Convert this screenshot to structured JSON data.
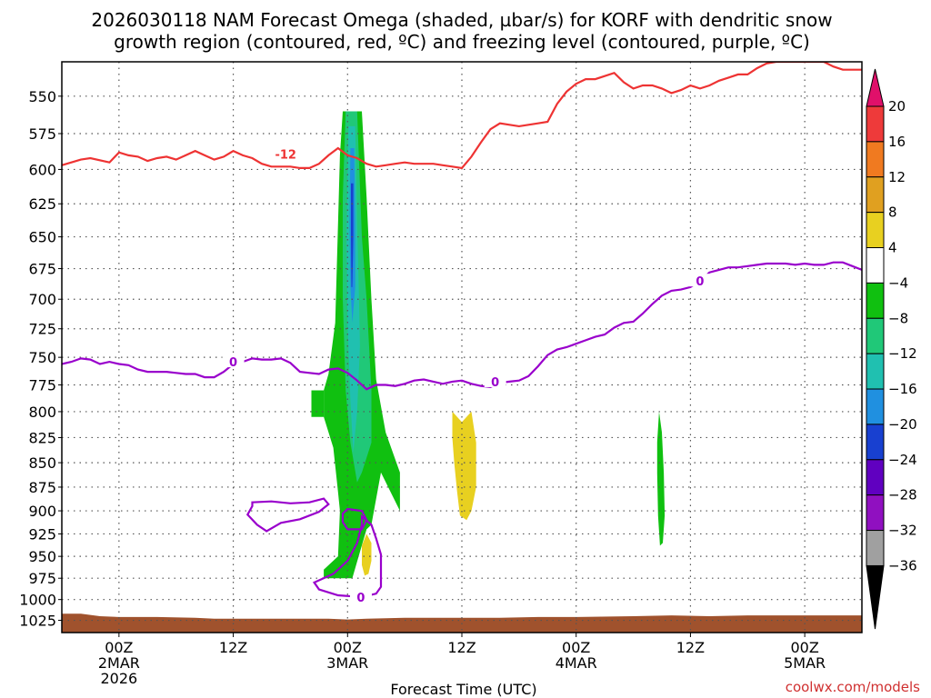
{
  "title_line1": "2026030118 NAM Forecast Omega (shaded, µbar/s) for KORF with dendritic snow",
  "title_line2": "growth region (contoured, red, ºC) and freezing level (contoured, purple, ºC)",
  "credit": "coolwx.com/models",
  "colors": {
    "dendritic": "#ee3333",
    "freezing": "#9900cc",
    "terrain": "#a0522d",
    "grid": "#555555"
  },
  "chart_data": {
    "type": "heatmap",
    "xlabel": "Forecast Time (UTC)",
    "ylabel": "",
    "x_range_hours": [
      -6,
      78
    ],
    "ylim": [
      1040,
      528
    ],
    "y_scale": "reversed pressure (hPa)",
    "grid": true,
    "y_ticks": [
      550,
      575,
      600,
      625,
      650,
      675,
      700,
      725,
      750,
      775,
      800,
      825,
      850,
      875,
      900,
      925,
      950,
      975,
      1000,
      1025
    ],
    "x_ticks": [
      {
        "h": 0,
        "lines": [
          "00Z",
          "2MAR",
          "2026"
        ]
      },
      {
        "h": 12,
        "lines": [
          "12Z"
        ]
      },
      {
        "h": 24,
        "lines": [
          "00Z",
          "3MAR"
        ]
      },
      {
        "h": 36,
        "lines": [
          "12Z"
        ]
      },
      {
        "h": 48,
        "lines": [
          "00Z",
          "4MAR"
        ]
      },
      {
        "h": 60,
        "lines": [
          "12Z"
        ]
      },
      {
        "h": 72,
        "lines": [
          "00Z",
          "5MAR"
        ]
      }
    ],
    "colorbar": {
      "labels": [
        "20",
        "16",
        "12",
        "8",
        "4",
        "−4",
        "−8",
        "−12",
        "−16",
        "−20",
        "−24",
        "−28",
        "−32",
        "−36"
      ],
      "colors": [
        "#ee3a3a",
        "#f07a20",
        "#e0a020",
        "#e8d020",
        "#ffffff",
        "#10c010",
        "#20c878",
        "#20c0b0",
        "#2090e0",
        "#1840d0",
        "#6000c0",
        "#9010c0",
        "#a0a0a0"
      ],
      "top_arrow_color": "#e0106a",
      "bottom_arrow_color": "#000000"
    },
    "dendritic_label": "-12",
    "freezing_label": "0",
    "dendritic_minus12_line": [
      [
        -6,
        597
      ],
      [
        -4,
        593
      ],
      [
        -3,
        592
      ],
      [
        -1,
        595
      ],
      [
        0,
        588
      ],
      [
        1,
        590
      ],
      [
        2,
        591
      ],
      [
        3,
        594
      ],
      [
        4,
        592
      ],
      [
        5,
        591
      ],
      [
        6,
        593
      ],
      [
        7,
        590
      ],
      [
        8,
        587
      ],
      [
        9,
        590
      ],
      [
        10,
        593
      ],
      [
        11,
        591
      ],
      [
        12,
        587
      ],
      [
        13,
        590
      ],
      [
        14,
        592
      ],
      [
        15,
        596
      ],
      [
        16,
        598
      ],
      [
        17,
        598
      ],
      [
        18,
        598
      ],
      [
        19,
        599
      ],
      [
        20,
        599
      ],
      [
        21,
        596
      ],
      [
        22,
        590
      ],
      [
        23,
        585
      ],
      [
        24,
        590
      ],
      [
        25,
        592
      ],
      [
        26,
        596
      ],
      [
        27,
        598
      ],
      [
        28,
        597
      ],
      [
        29,
        596
      ],
      [
        30,
        595
      ],
      [
        31,
        596
      ],
      [
        32,
        596
      ],
      [
        33,
        596
      ],
      [
        34,
        597
      ],
      [
        35,
        598
      ],
      [
        36,
        599
      ],
      [
        37,
        591
      ],
      [
        38,
        581
      ],
      [
        39,
        572
      ],
      [
        40,
        568
      ],
      [
        41,
        569
      ],
      [
        42,
        570
      ],
      [
        43,
        569
      ],
      [
        44,
        568
      ],
      [
        45,
        567
      ],
      [
        46,
        555
      ],
      [
        47,
        547
      ],
      [
        48,
        542
      ],
      [
        49,
        539
      ],
      [
        50,
        539
      ],
      [
        51,
        537
      ],
      [
        52,
        535
      ],
      [
        53,
        541
      ],
      [
        54,
        545
      ],
      [
        55,
        543
      ],
      [
        56,
        543
      ],
      [
        57,
        545
      ],
      [
        58,
        548
      ],
      [
        59,
        546
      ],
      [
        60,
        543
      ],
      [
        61,
        545
      ],
      [
        62,
        543
      ],
      [
        63,
        540
      ],
      [
        64,
        538
      ],
      [
        65,
        536
      ],
      [
        66,
        536
      ],
      [
        67,
        532
      ],
      [
        68,
        529
      ],
      [
        69,
        528
      ],
      [
        70,
        528
      ],
      [
        71,
        528
      ],
      [
        72,
        528
      ],
      [
        73,
        528
      ],
      [
        74,
        528
      ],
      [
        75,
        531
      ],
      [
        76,
        533
      ],
      [
        77,
        533
      ],
      [
        78,
        533
      ]
    ],
    "freezing_0_line": [
      [
        -6,
        756
      ],
      [
        -5,
        754
      ],
      [
        -4,
        751
      ],
      [
        -3,
        752
      ],
      [
        -2,
        756
      ],
      [
        -1,
        754
      ],
      [
        0,
        756
      ],
      [
        1,
        757
      ],
      [
        2,
        761
      ],
      [
        3,
        763
      ],
      [
        4,
        763
      ],
      [
        5,
        763
      ],
      [
        6,
        764
      ],
      [
        7,
        765
      ],
      [
        8,
        765
      ],
      [
        9,
        768
      ],
      [
        10,
        768
      ],
      [
        11,
        763
      ],
      [
        12,
        756
      ],
      [
        13,
        754
      ],
      [
        14,
        751
      ],
      [
        15,
        752
      ],
      [
        16,
        752
      ],
      [
        17,
        751
      ],
      [
        18,
        755
      ],
      [
        19,
        763
      ],
      [
        20,
        764
      ],
      [
        21,
        765
      ],
      [
        22,
        761
      ],
      [
        23,
        760
      ],
      [
        24,
        764
      ],
      [
        25,
        771
      ],
      [
        26,
        779
      ],
      [
        27,
        775
      ],
      [
        28,
        775
      ],
      [
        29,
        776
      ],
      [
        30,
        774
      ],
      [
        31,
        771
      ],
      [
        32,
        770
      ],
      [
        33,
        772
      ],
      [
        34,
        774
      ],
      [
        35,
        772
      ],
      [
        36,
        771
      ],
      [
        37,
        774
      ],
      [
        38,
        776
      ],
      [
        39,
        777
      ],
      [
        40,
        773
      ],
      [
        41,
        772
      ],
      [
        42,
        771
      ],
      [
        43,
        767
      ],
      [
        44,
        758
      ],
      [
        45,
        748
      ],
      [
        46,
        743
      ],
      [
        47,
        741
      ],
      [
        48,
        738
      ],
      [
        49,
        735
      ],
      [
        50,
        732
      ],
      [
        51,
        730
      ],
      [
        52,
        724
      ],
      [
        53,
        720
      ],
      [
        54,
        719
      ],
      [
        55,
        712
      ],
      [
        56,
        704
      ],
      [
        57,
        697
      ],
      [
        58,
        693
      ],
      [
        59,
        692
      ],
      [
        60,
        690
      ],
      [
        61,
        685
      ],
      [
        62,
        678
      ],
      [
        63,
        676
      ],
      [
        64,
        674
      ],
      [
        65,
        674
      ],
      [
        66,
        673
      ],
      [
        67,
        672
      ],
      [
        68,
        671
      ],
      [
        69,
        671
      ],
      [
        70,
        671
      ],
      [
        71,
        672
      ],
      [
        72,
        671
      ],
      [
        73,
        672
      ],
      [
        74,
        672
      ],
      [
        75,
        670
      ],
      [
        76,
        670
      ],
      [
        77,
        673
      ],
      [
        78,
        676
      ]
    ],
    "freezing_0_lowlevel_loop": [
      [
        14,
        891
      ],
      [
        16,
        890
      ],
      [
        18,
        892
      ],
      [
        20,
        891
      ],
      [
        21.5,
        887
      ],
      [
        22,
        893
      ],
      [
        21,
        901
      ],
      [
        19,
        909
      ],
      [
        17,
        913
      ],
      [
        15.5,
        922
      ],
      [
        14.5,
        915
      ],
      [
        13.5,
        904
      ],
      [
        14,
        895
      ]
    ],
    "freezing_0_near_surface": [
      [
        25.5,
        906
      ],
      [
        26.5,
        915
      ],
      [
        27,
        930
      ],
      [
        27.5,
        948
      ],
      [
        27.5,
        968
      ],
      [
        27.5,
        985
      ],
      [
        27,
        993
      ],
      [
        25.5,
        997
      ],
      [
        23,
        995
      ],
      [
        21,
        988
      ],
      [
        20.5,
        980
      ],
      [
        22.5,
        970
      ],
      [
        24,
        955
      ],
      [
        25,
        935
      ],
      [
        25.5,
        915
      ]
    ],
    "freezing_0_near_surface_blob": [
      [
        24,
        898
      ],
      [
        25.5,
        900
      ],
      [
        26,
        910
      ],
      [
        25.5,
        920
      ],
      [
        24,
        920
      ],
      [
        23.5,
        912
      ],
      [
        23.5,
        903
      ]
    ],
    "omega_regions": [
      {
        "band": "-8 to -4",
        "outline": [
          [
            23.5,
            560
          ],
          [
            25.5,
            560
          ],
          [
            26,
            620
          ],
          [
            26.5,
            700
          ],
          [
            27,
            770
          ],
          [
            28,
            820
          ],
          [
            29.5,
            860
          ],
          [
            29.5,
            900
          ],
          [
            27.5,
            860
          ],
          [
            26.5,
            915
          ],
          [
            26,
            920
          ],
          [
            25.3,
            945
          ],
          [
            24.5,
            975
          ],
          [
            21.5,
            975
          ],
          [
            21.5,
            965
          ],
          [
            23,
            950
          ],
          [
            23.2,
            900
          ],
          [
            23,
            880
          ],
          [
            22.5,
            835
          ],
          [
            21.5,
            805
          ],
          [
            21.5,
            780
          ],
          [
            22,
            765
          ],
          [
            22.7,
            720
          ],
          [
            23,
            640
          ],
          [
            23.2,
            590
          ]
        ]
      },
      {
        "band": "-8 to -4",
        "outline": [
          [
            20.2,
            780
          ],
          [
            21.5,
            780
          ],
          [
            21.5,
            805
          ],
          [
            20.2,
            805
          ]
        ]
      },
      {
        "band": "-12 to -8",
        "outline": [
          [
            23.8,
            560
          ],
          [
            25,
            560
          ],
          [
            25.5,
            650
          ],
          [
            26,
            700
          ],
          [
            26.5,
            780
          ],
          [
            26.5,
            830
          ],
          [
            25.5,
            860
          ],
          [
            25,
            870
          ],
          [
            24.3,
            830
          ],
          [
            23.8,
            780
          ],
          [
            23.5,
            700
          ],
          [
            23.5,
            620
          ]
        ]
      },
      {
        "band": "-16 to -12",
        "outline": [
          [
            24.1,
            570
          ],
          [
            24.8,
            570
          ],
          [
            25,
            640
          ],
          [
            25.2,
            700
          ],
          [
            25.3,
            740
          ],
          [
            25,
            800
          ],
          [
            24.6,
            840
          ],
          [
            24.3,
            790
          ],
          [
            24,
            720
          ],
          [
            23.9,
            650
          ]
        ]
      },
      {
        "band": "-20 to -16",
        "outline": [
          [
            24.3,
            585
          ],
          [
            24.7,
            585
          ],
          [
            24.8,
            640
          ],
          [
            24.8,
            690
          ],
          [
            24.5,
            720
          ],
          [
            24.3,
            690
          ],
          [
            24.2,
            640
          ]
        ]
      },
      {
        "band": "-24 to -20",
        "outline": [
          [
            24.35,
            610
          ],
          [
            24.6,
            610
          ],
          [
            24.6,
            650
          ],
          [
            24.5,
            690
          ],
          [
            24.4,
            690
          ],
          [
            24.35,
            650
          ]
        ]
      },
      {
        "band": "4 to 8",
        "outline": [
          [
            35,
            800
          ],
          [
            36,
            810
          ],
          [
            37,
            800
          ],
          [
            37.5,
            830
          ],
          [
            37.5,
            875
          ],
          [
            37,
            900
          ],
          [
            36.5,
            910
          ],
          [
            35.8,
            905
          ],
          [
            35.5,
            880
          ],
          [
            35.2,
            850
          ],
          [
            35,
            825
          ]
        ]
      },
      {
        "band": "4 to 8",
        "outline": [
          [
            26,
            925
          ],
          [
            26.5,
            935
          ],
          [
            26.5,
            955
          ],
          [
            26.2,
            970
          ],
          [
            25.8,
            972
          ],
          [
            25.5,
            960
          ],
          [
            25.5,
            938
          ]
        ]
      },
      {
        "band": "-8 to -4",
        "outline": [
          [
            56.7,
            800
          ],
          [
            57,
            820
          ],
          [
            57.2,
            860
          ],
          [
            57.3,
            905
          ],
          [
            57.1,
            935
          ],
          [
            56.8,
            938
          ],
          [
            56.6,
            905
          ],
          [
            56.5,
            860
          ],
          [
            56.5,
            830
          ]
        ]
      }
    ],
    "terrain_profile": [
      [
        -6,
        1017
      ],
      [
        -4,
        1017
      ],
      [
        -2,
        1020
      ],
      [
        0,
        1021
      ],
      [
        4,
        1021
      ],
      [
        8,
        1022
      ],
      [
        10,
        1023
      ],
      [
        16,
        1023
      ],
      [
        22,
        1023
      ],
      [
        24,
        1024
      ],
      [
        26,
        1023
      ],
      [
        30,
        1022
      ],
      [
        36,
        1022
      ],
      [
        40,
        1022
      ],
      [
        44,
        1021
      ],
      [
        48,
        1021
      ],
      [
        54,
        1020
      ],
      [
        58,
        1019
      ],
      [
        62,
        1020
      ],
      [
        66,
        1019
      ],
      [
        70,
        1019
      ],
      [
        74,
        1019
      ],
      [
        78,
        1019
      ]
    ]
  }
}
